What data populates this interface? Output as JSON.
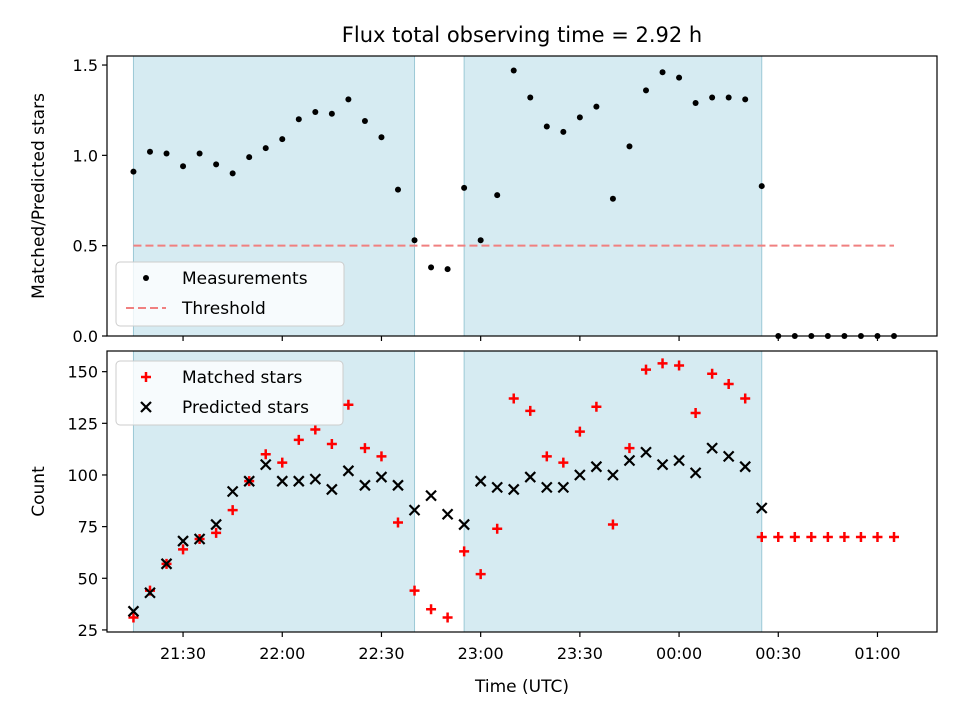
{
  "chart_data": {
    "title": "Flux total observing time = 2.92 h",
    "xlabel": "Time (UTC)",
    "x_ticks": [
      "21:30",
      "22:00",
      "22:30",
      "23:00",
      "23:30",
      "00:00",
      "00:30",
      "01:00"
    ],
    "x_range": [
      "21:07",
      "01:18"
    ],
    "shaded_spans": [
      {
        "start": "21:15",
        "end": "22:40"
      },
      {
        "start": "22:55",
        "end": "00:25"
      }
    ],
    "panels": [
      {
        "type": "scatter",
        "ylabel": "Matched/Predicted stars",
        "ylim": [
          0,
          1.55
        ],
        "y_ticks": [
          "0.0",
          "0.5",
          "1.0",
          "1.5"
        ],
        "legend": {
          "placement": "lower-left",
          "entries": [
            "Measurements",
            "Threshold"
          ]
        },
        "threshold": {
          "name": "Threshold",
          "value": 0.5,
          "x_start": "21:15",
          "x_end": "01:05",
          "color": "#f08080"
        },
        "series": [
          {
            "name": "Measurements",
            "color": "#000000",
            "x": [
              "21:15",
              "21:20",
              "21:25",
              "21:30",
              "21:35",
              "21:40",
              "21:45",
              "21:50",
              "21:55",
              "22:00",
              "22:05",
              "22:10",
              "22:15",
              "22:20",
              "22:25",
              "22:30",
              "22:35",
              "22:40",
              "22:45",
              "22:50",
              "22:55",
              "23:00",
              "23:05",
              "23:10",
              "23:15",
              "23:20",
              "23:25",
              "23:30",
              "23:35",
              "23:40",
              "23:45",
              "23:50",
              "23:55",
              "00:00",
              "00:05",
              "00:10",
              "00:15",
              "00:20",
              "00:25",
              "00:30",
              "00:35",
              "00:40",
              "00:45",
              "00:50",
              "00:55",
              "01:00",
              "01:05"
            ],
            "y": [
              0.91,
              1.02,
              1.01,
              0.94,
              1.01,
              0.95,
              0.9,
              0.99,
              1.04,
              1.09,
              1.2,
              1.24,
              1.23,
              1.31,
              1.19,
              1.1,
              0.81,
              0.53,
              0.38,
              0.37,
              0.82,
              0.53,
              0.78,
              1.47,
              1.32,
              1.16,
              1.13,
              1.21,
              1.27,
              0.76,
              1.05,
              1.36,
              1.46,
              1.43,
              1.29,
              1.32,
              1.32,
              1.31,
              0.83,
              0.0,
              0.0,
              0.0,
              0.0,
              0.0,
              0.0,
              0.0,
              0.0
            ]
          }
        ]
      },
      {
        "type": "scatter",
        "ylabel": "Count",
        "ylim": [
          24,
          160
        ],
        "y_ticks": [
          "25",
          "50",
          "75",
          "100",
          "125",
          "150"
        ],
        "legend": {
          "placement": "upper-left",
          "entries": [
            "Matched stars",
            "Predicted stars"
          ]
        },
        "series": [
          {
            "name": "Matched stars",
            "color": "#ff0000",
            "marker": "plus",
            "x": [
              "21:15",
              "21:20",
              "21:25",
              "21:30",
              "21:35",
              "21:40",
              "21:45",
              "21:50",
              "21:55",
              "22:00",
              "22:05",
              "22:10",
              "22:15",
              "22:20",
              "22:25",
              "22:30",
              "22:35",
              "22:40",
              "22:45",
              "22:50",
              "22:55",
              "23:00",
              "23:05",
              "23:10",
              "23:15",
              "23:20",
              "23:25",
              "23:30",
              "23:35",
              "23:40",
              "23:45",
              "23:50",
              "23:55",
              "00:00",
              "00:05",
              "00:10",
              "00:15",
              "00:20",
              "00:25",
              "00:30",
              "00:35",
              "00:40",
              "00:45",
              "00:50",
              "00:55",
              "01:00",
              "01:05"
            ],
            "y": [
              31,
              44,
              57,
              64,
              69,
              72,
              83,
              97,
              110,
              106,
              117,
              122,
              115,
              134,
              113,
              109,
              77,
              44,
              35,
              31,
              63,
              52,
              74,
              137,
              131,
              109,
              106,
              121,
              133,
              76,
              113,
              151,
              154,
              153,
              130,
              149,
              144,
              137,
              70,
              70,
              70,
              70,
              70,
              70,
              70,
              70,
              70
            ]
          },
          {
            "name": "Predicted stars",
            "color": "#000000",
            "marker": "x",
            "x": [
              "21:15",
              "21:20",
              "21:25",
              "21:30",
              "21:35",
              "21:40",
              "21:45",
              "21:50",
              "21:55",
              "22:00",
              "22:05",
              "22:10",
              "22:15",
              "22:20",
              "22:25",
              "22:30",
              "22:35",
              "22:40",
              "22:45",
              "22:50",
              "22:55",
              "23:00",
              "23:05",
              "23:10",
              "23:15",
              "23:20",
              "23:25",
              "23:30",
              "23:35",
              "23:40",
              "23:45",
              "23:50",
              "23:55",
              "00:00",
              "00:05",
              "00:10",
              "00:15",
              "00:20",
              "00:25"
            ],
            "y": [
              34,
              43,
              57,
              68,
              69,
              76,
              92,
              97,
              105,
              97,
              97,
              98,
              93,
              102,
              95,
              99,
              95,
              83,
              90,
              81,
              76,
              97,
              94,
              93,
              99,
              94,
              94,
              100,
              104,
              100,
              107,
              111,
              105,
              107,
              101,
              113,
              109,
              104,
              84
            ]
          }
        ]
      }
    ]
  }
}
